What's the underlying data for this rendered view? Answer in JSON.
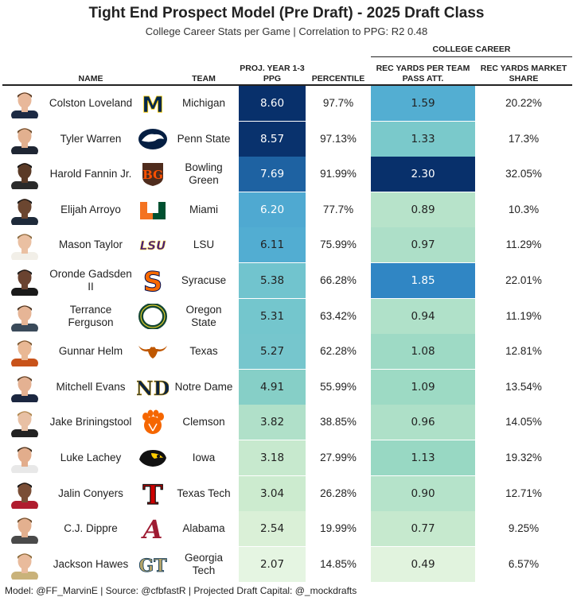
{
  "title": "Tight End Prospect Model (Pre Draft) - 2025 Draft Class",
  "subtitle": "College Career Stats per Game | Correlation to PPG: R2 0.48",
  "footer": "Model: @FF_MarvinE | Source: @cfbfastR | Projected Draft Capital: @_mockdrafts",
  "headers": {
    "group": "COLLEGE CAREER",
    "name": "NAME",
    "team": "TEAM",
    "proj": "PROJ. YEAR 1-3 PPG",
    "percentile": "PERCENTILE",
    "rec_yards_per_pass": "REC YARDS PER TEAM PASS ATT.",
    "market_share": "REC YARDS MARKET SHARE"
  },
  "logo_text": {
    "michigan": "M",
    "bowling_green": "BG",
    "miami": "U",
    "lsu": "LSU",
    "syracuse": "S",
    "oregon": "O",
    "notre_dame": "ND",
    "texas_tech": "T",
    "alabama": "A",
    "georgia_tech": "GT"
  },
  "colors": {
    "scale_light": "#e9f6e6",
    "scale_mid": "#7ccdc4",
    "scale_blue": "#2b8cc4",
    "scale_dark": "#08306b"
  },
  "chart_data": {
    "type": "table",
    "columns": [
      "NAME",
      "TEAM",
      "PROJ. YEAR 1-3 PPG",
      "PERCENTILE",
      "REC YARDS PER TEAM PASS ATT.",
      "REC YARDS MARKET SHARE"
    ],
    "rows": [
      {
        "name": "Colston Loveland",
        "team": "Michigan",
        "logo": "michigan",
        "ppg": 8.6,
        "ppg_text": "8.60",
        "percentile": "97.7%",
        "ypa": 1.59,
        "ypa_text": "1.59",
        "share": "20.22%"
      },
      {
        "name": "Tyler Warren",
        "team": "Penn State",
        "logo": "penn_state",
        "ppg": 8.57,
        "ppg_text": "8.57",
        "percentile": "97.13%",
        "ypa": 1.33,
        "ypa_text": "1.33",
        "share": "17.3%"
      },
      {
        "name": "Harold Fannin Jr.",
        "team": "Bowling Green",
        "logo": "bowling_green",
        "ppg": 7.69,
        "ppg_text": "7.69",
        "percentile": "91.99%",
        "ypa": 2.3,
        "ypa_text": "2.30",
        "share": "32.05%"
      },
      {
        "name": "Elijah Arroyo",
        "team": "Miami",
        "logo": "miami",
        "ppg": 6.2,
        "ppg_text": "6.20",
        "percentile": "77.7%",
        "ypa": 0.89,
        "ypa_text": "0.89",
        "share": "10.3%"
      },
      {
        "name": "Mason Taylor",
        "team": "LSU",
        "logo": "lsu",
        "ppg": 6.11,
        "ppg_text": "6.11",
        "percentile": "75.99%",
        "ypa": 0.97,
        "ypa_text": "0.97",
        "share": "11.29%"
      },
      {
        "name": "Oronde Gadsden II",
        "team": "Syracuse",
        "logo": "syracuse",
        "ppg": 5.38,
        "ppg_text": "5.38",
        "percentile": "66.28%",
        "ypa": 1.85,
        "ypa_text": "1.85",
        "share": "22.01%"
      },
      {
        "name": "Terrance Ferguson",
        "team": "Oregon State",
        "logo": "oregon",
        "ppg": 5.31,
        "ppg_text": "5.31",
        "percentile": "63.42%",
        "ypa": 0.94,
        "ypa_text": "0.94",
        "share": "11.19%"
      },
      {
        "name": "Gunnar Helm",
        "team": "Texas",
        "logo": "texas",
        "ppg": 5.27,
        "ppg_text": "5.27",
        "percentile": "62.28%",
        "ypa": 1.08,
        "ypa_text": "1.08",
        "share": "12.81%"
      },
      {
        "name": "Mitchell Evans",
        "team": "Notre Dame",
        "logo": "notre_dame",
        "ppg": 4.91,
        "ppg_text": "4.91",
        "percentile": "55.99%",
        "ypa": 1.09,
        "ypa_text": "1.09",
        "share": "13.54%"
      },
      {
        "name": "Jake Briningstool",
        "team": "Clemson",
        "logo": "clemson",
        "ppg": 3.82,
        "ppg_text": "3.82",
        "percentile": "38.85%",
        "ypa": 0.96,
        "ypa_text": "0.96",
        "share": "14.05%"
      },
      {
        "name": "Luke Lachey",
        "team": "Iowa",
        "logo": "iowa",
        "ppg": 3.18,
        "ppg_text": "3.18",
        "percentile": "27.99%",
        "ypa": 1.13,
        "ypa_text": "1.13",
        "share": "19.32%"
      },
      {
        "name": "Jalin Conyers",
        "team": "Texas Tech",
        "logo": "texas_tech",
        "ppg": 3.04,
        "ppg_text": "3.04",
        "percentile": "26.28%",
        "ypa": 0.9,
        "ypa_text": "0.90",
        "share": "12.71%"
      },
      {
        "name": "C.J. Dippre",
        "team": "Alabama",
        "logo": "alabama",
        "ppg": 2.54,
        "ppg_text": "2.54",
        "percentile": "19.99%",
        "ypa": 0.77,
        "ypa_text": "0.77",
        "share": "9.25%"
      },
      {
        "name": "Jackson Hawes",
        "team": "Georgia Tech",
        "logo": "georgia_tech",
        "ppg": 2.07,
        "ppg_text": "2.07",
        "percentile": "14.85%",
        "ypa": 0.49,
        "ypa_text": "0.49",
        "share": "6.57%"
      }
    ]
  }
}
